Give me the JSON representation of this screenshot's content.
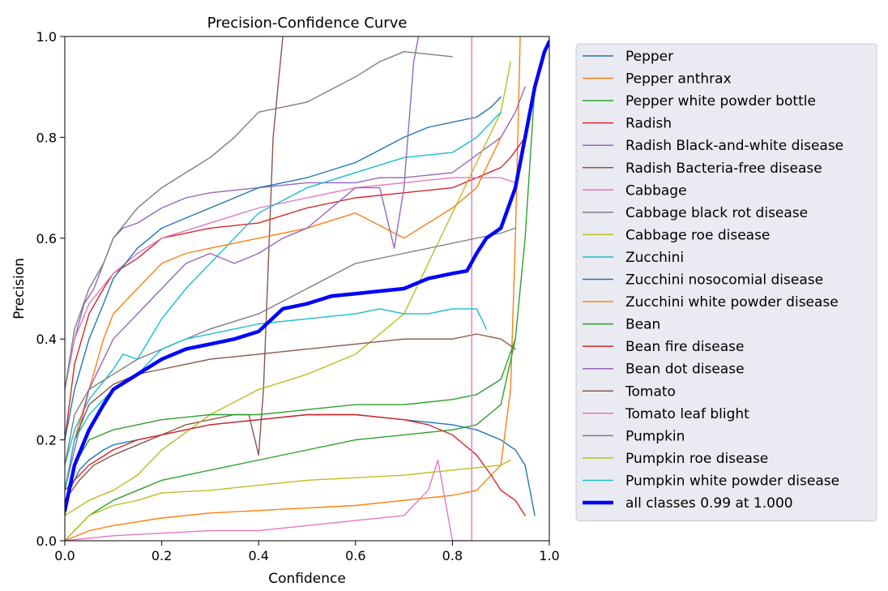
{
  "chart_data": {
    "type": "line",
    "title": "Precision-Confidence Curve",
    "xlabel": "Confidence",
    "ylabel": "Precision",
    "xlim": [
      0,
      1
    ],
    "ylim": [
      0,
      1
    ],
    "xticks": [
      "0.0",
      "0.2",
      "0.4",
      "0.6",
      "0.8",
      "1.0"
    ],
    "yticks": [
      "0.0",
      "0.2",
      "0.4",
      "0.6",
      "0.8",
      "1.0"
    ],
    "grid": false,
    "legend": "outside-right",
    "series": [
      {
        "name": "Pepper",
        "color": "#1f77b4",
        "x": [
          0,
          0.01,
          0.03,
          0.05,
          0.08,
          0.1,
          0.15,
          0.2,
          0.3,
          0.4,
          0.5,
          0.6,
          0.7,
          0.8,
          0.85,
          0.9,
          0.93,
          0.95,
          0.96,
          0.97
        ],
        "y": [
          0.05,
          0.1,
          0.14,
          0.16,
          0.18,
          0.19,
          0.2,
          0.21,
          0.23,
          0.24,
          0.25,
          0.25,
          0.24,
          0.23,
          0.22,
          0.2,
          0.18,
          0.15,
          0.1,
          0.05
        ]
      },
      {
        "name": "Pepper anthrax",
        "color": "#ff7f0e",
        "x": [
          0,
          0.05,
          0.1,
          0.2,
          0.3,
          0.4,
          0.5,
          0.6,
          0.7,
          0.8,
          0.85,
          0.9,
          0.92,
          0.93,
          0.94
        ],
        "y": [
          0.0,
          0.02,
          0.03,
          0.045,
          0.055,
          0.06,
          0.065,
          0.07,
          0.08,
          0.09,
          0.1,
          0.15,
          0.3,
          0.6,
          1.0
        ]
      },
      {
        "name": "Pepper white powder bottle",
        "color": "#2ca02c",
        "x": [
          0,
          0.05,
          0.1,
          0.15,
          0.2,
          0.3,
          0.4,
          0.5,
          0.6,
          0.7,
          0.8,
          0.85,
          0.9,
          0.93,
          0.95,
          0.97
        ],
        "y": [
          0.0,
          0.05,
          0.08,
          0.1,
          0.12,
          0.14,
          0.16,
          0.18,
          0.2,
          0.21,
          0.22,
          0.23,
          0.27,
          0.4,
          0.6,
          0.9
        ]
      },
      {
        "name": "Radish",
        "color": "#d62728",
        "x": [
          0,
          0.02,
          0.05,
          0.08,
          0.1,
          0.15,
          0.2,
          0.3,
          0.4,
          0.5,
          0.6,
          0.7,
          0.8,
          0.85,
          0.9,
          0.92,
          0.95
        ],
        "y": [
          0.2,
          0.35,
          0.45,
          0.5,
          0.53,
          0.56,
          0.6,
          0.62,
          0.63,
          0.66,
          0.68,
          0.69,
          0.7,
          0.72,
          0.74,
          0.76,
          0.8
        ]
      },
      {
        "name": "Radish Black-and-white disease",
        "color": "#9467bd",
        "x": [
          0,
          0.02,
          0.04,
          0.06,
          0.08,
          0.1,
          0.12,
          0.15,
          0.2,
          0.25,
          0.3,
          0.4,
          0.5,
          0.6,
          0.65,
          0.7,
          0.8,
          0.9,
          0.93,
          0.95
        ],
        "y": [
          0.3,
          0.4,
          0.47,
          0.5,
          0.55,
          0.6,
          0.62,
          0.63,
          0.66,
          0.68,
          0.69,
          0.7,
          0.71,
          0.71,
          0.72,
          0.72,
          0.73,
          0.8,
          0.85,
          0.9
        ]
      },
      {
        "name": "Radish Bacteria-free disease",
        "color": "#8c564b",
        "x": [
          0,
          0.03,
          0.06,
          0.1,
          0.15,
          0.2,
          0.25,
          0.3,
          0.35,
          0.38,
          0.4,
          0.41,
          0.42,
          0.43,
          0.45
        ],
        "y": [
          0.08,
          0.12,
          0.15,
          0.17,
          0.19,
          0.21,
          0.23,
          0.24,
          0.25,
          0.25,
          0.17,
          0.3,
          0.55,
          0.8,
          1.0
        ]
      },
      {
        "name": "Cabbage",
        "color": "#e377c2",
        "x": [
          0,
          0.02,
          0.05,
          0.1,
          0.15,
          0.2,
          0.3,
          0.4,
          0.5,
          0.6,
          0.7,
          0.8,
          0.9,
          0.93
        ],
        "y": [
          0.3,
          0.4,
          0.47,
          0.53,
          0.57,
          0.6,
          0.63,
          0.66,
          0.68,
          0.7,
          0.71,
          0.72,
          0.72,
          0.71
        ]
      },
      {
        "name": "Cabbage black rot disease",
        "color": "#7f7f7f",
        "x": [
          0,
          0.02,
          0.05,
          0.08,
          0.1,
          0.15,
          0.2,
          0.25,
          0.3,
          0.35,
          0.4,
          0.5,
          0.6,
          0.65,
          0.7,
          0.8
        ],
        "y": [
          0.3,
          0.42,
          0.5,
          0.55,
          0.6,
          0.66,
          0.7,
          0.73,
          0.76,
          0.8,
          0.85,
          0.87,
          0.92,
          0.95,
          0.97,
          0.96
        ]
      },
      {
        "name": "Cabbage roe disease",
        "color": "#bcbd22",
        "x": [
          0,
          0.05,
          0.1,
          0.15,
          0.2,
          0.3,
          0.4,
          0.5,
          0.6,
          0.7,
          0.75,
          0.8,
          0.85,
          0.9,
          0.92
        ],
        "y": [
          0.05,
          0.08,
          0.1,
          0.13,
          0.18,
          0.25,
          0.3,
          0.33,
          0.37,
          0.45,
          0.55,
          0.65,
          0.75,
          0.85,
          0.95
        ]
      },
      {
        "name": "Zucchini",
        "color": "#17becf",
        "x": [
          0,
          0.02,
          0.05,
          0.1,
          0.12,
          0.15,
          0.2,
          0.25,
          0.3,
          0.35,
          0.4,
          0.5,
          0.6,
          0.7,
          0.8,
          0.85,
          0.9
        ],
        "y": [
          0.15,
          0.22,
          0.28,
          0.34,
          0.37,
          0.36,
          0.44,
          0.5,
          0.55,
          0.6,
          0.65,
          0.7,
          0.73,
          0.76,
          0.77,
          0.8,
          0.85
        ]
      },
      {
        "name": "Zucchini nosocomial disease",
        "color": "#1f77b4",
        "x": [
          0,
          0.02,
          0.05,
          0.08,
          0.1,
          0.15,
          0.2,
          0.25,
          0.3,
          0.4,
          0.5,
          0.6,
          0.7,
          0.75,
          0.8,
          0.85,
          0.88,
          0.9
        ],
        "y": [
          0.2,
          0.3,
          0.4,
          0.47,
          0.52,
          0.58,
          0.62,
          0.64,
          0.66,
          0.7,
          0.72,
          0.75,
          0.8,
          0.82,
          0.83,
          0.84,
          0.86,
          0.88
        ]
      },
      {
        "name": "Zucchini white powder disease",
        "color": "#ff7f0e",
        "x": [
          0,
          0.02,
          0.05,
          0.08,
          0.1,
          0.15,
          0.2,
          0.25,
          0.3,
          0.4,
          0.5,
          0.6,
          0.7,
          0.8,
          0.85,
          0.9
        ],
        "y": [
          0.1,
          0.2,
          0.3,
          0.4,
          0.45,
          0.5,
          0.55,
          0.57,
          0.58,
          0.6,
          0.62,
          0.65,
          0.6,
          0.66,
          0.7,
          0.8
        ]
      },
      {
        "name": "Bean",
        "color": "#2ca02c",
        "x": [
          0,
          0.02,
          0.05,
          0.1,
          0.15,
          0.2,
          0.3,
          0.4,
          0.5,
          0.6,
          0.7,
          0.8,
          0.85,
          0.9,
          0.93
        ],
        "y": [
          0.05,
          0.15,
          0.2,
          0.22,
          0.23,
          0.24,
          0.25,
          0.25,
          0.26,
          0.27,
          0.27,
          0.28,
          0.29,
          0.32,
          0.4
        ]
      },
      {
        "name": "Bean fire disease",
        "color": "#d62728",
        "x": [
          0,
          0.05,
          0.1,
          0.15,
          0.2,
          0.3,
          0.4,
          0.5,
          0.6,
          0.7,
          0.75,
          0.8,
          0.85,
          0.88,
          0.9,
          0.93,
          0.95
        ],
        "y": [
          0.1,
          0.15,
          0.18,
          0.2,
          0.21,
          0.23,
          0.24,
          0.25,
          0.25,
          0.24,
          0.23,
          0.21,
          0.17,
          0.13,
          0.1,
          0.08,
          0.05
        ]
      },
      {
        "name": "Bean dot disease",
        "color": "#9467bd",
        "x": [
          0,
          0.05,
          0.1,
          0.15,
          0.2,
          0.25,
          0.3,
          0.35,
          0.4,
          0.45,
          0.5,
          0.55,
          0.6,
          0.65,
          0.68,
          0.7,
          0.72,
          0.73
        ],
        "y": [
          0.1,
          0.3,
          0.4,
          0.45,
          0.5,
          0.55,
          0.57,
          0.55,
          0.57,
          0.6,
          0.62,
          0.66,
          0.7,
          0.7,
          0.58,
          0.7,
          0.95,
          1.0
        ]
      },
      {
        "name": "Tomato",
        "color": "#8c564b",
        "x": [
          0,
          0.02,
          0.05,
          0.1,
          0.15,
          0.2,
          0.3,
          0.4,
          0.5,
          0.6,
          0.7,
          0.8,
          0.85,
          0.9,
          0.93
        ],
        "y": [
          0.1,
          0.2,
          0.27,
          0.31,
          0.33,
          0.34,
          0.36,
          0.37,
          0.38,
          0.39,
          0.4,
          0.4,
          0.41,
          0.4,
          0.38
        ]
      },
      {
        "name": "Tomato leaf blight",
        "color": "#e377c2",
        "x": [
          0,
          0.1,
          0.2,
          0.3,
          0.4,
          0.5,
          0.6,
          0.7,
          0.75,
          0.77,
          0.8,
          0.84,
          0.84,
          0.84
        ],
        "y": [
          0.0,
          0.01,
          0.015,
          0.02,
          0.02,
          0.03,
          0.04,
          0.05,
          0.1,
          0.16,
          0.0,
          0.0,
          1.0,
          0.0
        ]
      },
      {
        "name": "Pumpkin",
        "color": "#7f7f7f",
        "x": [
          0,
          0.02,
          0.05,
          0.1,
          0.15,
          0.2,
          0.3,
          0.4,
          0.5,
          0.6,
          0.7,
          0.8,
          0.9,
          0.93
        ],
        "y": [
          0.15,
          0.25,
          0.3,
          0.33,
          0.36,
          0.38,
          0.42,
          0.45,
          0.5,
          0.55,
          0.57,
          0.59,
          0.61,
          0.62
        ]
      },
      {
        "name": "Pumpkin roe disease",
        "color": "#bcbd22",
        "x": [
          0,
          0.05,
          0.1,
          0.15,
          0.2,
          0.3,
          0.4,
          0.5,
          0.6,
          0.7,
          0.8,
          0.9,
          0.92
        ],
        "y": [
          0.0,
          0.05,
          0.07,
          0.08,
          0.095,
          0.1,
          0.11,
          0.12,
          0.125,
          0.13,
          0.14,
          0.15,
          0.16
        ]
      },
      {
        "name": "Pumpkin white powder disease",
        "color": "#17becf",
        "x": [
          0,
          0.02,
          0.05,
          0.1,
          0.15,
          0.2,
          0.25,
          0.3,
          0.35,
          0.4,
          0.5,
          0.6,
          0.65,
          0.7,
          0.75,
          0.8,
          0.85,
          0.87
        ],
        "y": [
          0.1,
          0.2,
          0.25,
          0.3,
          0.33,
          0.38,
          0.4,
          0.41,
          0.42,
          0.43,
          0.44,
          0.45,
          0.46,
          0.45,
          0.45,
          0.46,
          0.46,
          0.42
        ]
      },
      {
        "name": "all classes 0.99 at 1.000",
        "color": "#0000ff",
        "bold": true,
        "x": [
          0,
          0.02,
          0.05,
          0.08,
          0.1,
          0.15,
          0.2,
          0.25,
          0.3,
          0.35,
          0.4,
          0.45,
          0.5,
          0.55,
          0.6,
          0.65,
          0.7,
          0.75,
          0.8,
          0.83,
          0.85,
          0.87,
          0.9,
          0.93,
          0.95,
          0.97,
          0.99,
          1.0
        ],
        "y": [
          0.06,
          0.15,
          0.22,
          0.27,
          0.3,
          0.33,
          0.36,
          0.38,
          0.39,
          0.4,
          0.415,
          0.46,
          0.47,
          0.485,
          0.49,
          0.495,
          0.5,
          0.52,
          0.53,
          0.535,
          0.57,
          0.6,
          0.62,
          0.7,
          0.8,
          0.9,
          0.97,
          0.99
        ]
      }
    ]
  }
}
